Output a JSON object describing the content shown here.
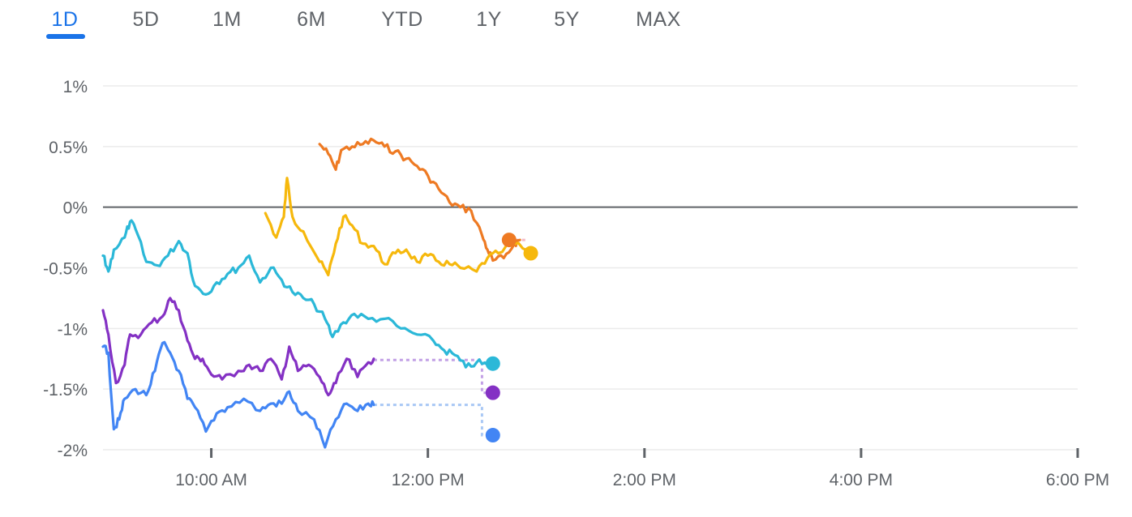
{
  "tabs": [
    {
      "label": "1D",
      "active": true
    },
    {
      "label": "5D",
      "active": false
    },
    {
      "label": "1M",
      "active": false
    },
    {
      "label": "6M",
      "active": false
    },
    {
      "label": "YTD",
      "active": false
    },
    {
      "label": "1Y",
      "active": false
    },
    {
      "label": "5Y",
      "active": false
    },
    {
      "label": "MAX",
      "active": false
    }
  ],
  "chart_data": {
    "type": "line",
    "ylim": [
      -2,
      1
    ],
    "yticks": [
      1,
      0.5,
      0,
      -0.5,
      -1,
      -1.5,
      -2
    ],
    "ytick_labels": [
      "1%",
      "0.5%",
      "0%",
      "-0.5%",
      "-1%",
      "-1.5%",
      "-2%"
    ],
    "xlim": [
      9.0,
      18.0
    ],
    "xticks": [
      10,
      12,
      14,
      16,
      18
    ],
    "xtick_labels": [
      "10:00 AM",
      "12:00 PM",
      "2:00 PM",
      "4:00 PM",
      "6:00 PM"
    ],
    "baseline": 0,
    "grid": true,
    "series": [
      {
        "color": "#ee7a23",
        "end_marker": {
          "x": 12.75,
          "y": -0.27
        },
        "points": [
          [
            11.0,
            0.52
          ],
          [
            11.08,
            0.44
          ],
          [
            11.15,
            0.31
          ],
          [
            11.2,
            0.47
          ],
          [
            11.3,
            0.5
          ],
          [
            11.4,
            0.52
          ],
          [
            11.5,
            0.55
          ],
          [
            11.6,
            0.5
          ],
          [
            11.7,
            0.46
          ],
          [
            11.8,
            0.4
          ],
          [
            11.9,
            0.34
          ],
          [
            12.0,
            0.26
          ],
          [
            12.1,
            0.15
          ],
          [
            12.2,
            0.04
          ],
          [
            12.3,
            0.0
          ],
          [
            12.4,
            -0.03
          ],
          [
            12.5,
            -0.23
          ],
          [
            12.55,
            -0.35
          ],
          [
            12.6,
            -0.44
          ],
          [
            12.7,
            -0.42
          ],
          [
            12.8,
            -0.3
          ],
          [
            12.85,
            -0.27
          ]
        ]
      },
      {
        "color": "#f6b80c",
        "end_marker": {
          "x": 12.95,
          "y": -0.38
        },
        "points": [
          [
            10.5,
            -0.05
          ],
          [
            10.6,
            -0.25
          ],
          [
            10.67,
            -0.08
          ],
          [
            10.7,
            0.24
          ],
          [
            10.75,
            -0.08
          ],
          [
            10.85,
            -0.2
          ],
          [
            11.0,
            -0.45
          ],
          [
            11.08,
            -0.56
          ],
          [
            11.15,
            -0.3
          ],
          [
            11.22,
            -0.08
          ],
          [
            11.3,
            -0.15
          ],
          [
            11.4,
            -0.3
          ],
          [
            11.5,
            -0.32
          ],
          [
            11.6,
            -0.47
          ],
          [
            11.7,
            -0.38
          ],
          [
            11.8,
            -0.35
          ],
          [
            11.9,
            -0.45
          ],
          [
            12.0,
            -0.4
          ],
          [
            12.1,
            -0.45
          ],
          [
            12.2,
            -0.47
          ],
          [
            12.3,
            -0.5
          ],
          [
            12.45,
            -0.53
          ],
          [
            12.55,
            -0.42
          ],
          [
            12.65,
            -0.38
          ],
          [
            12.8,
            -0.3
          ],
          [
            12.95,
            -0.38
          ]
        ]
      },
      {
        "color": "#2bb8d8",
        "end_marker": {
          "x": 12.6,
          "y": -1.29
        },
        "points": [
          [
            9.0,
            -0.4
          ],
          [
            9.05,
            -0.53
          ],
          [
            9.1,
            -0.35
          ],
          [
            9.2,
            -0.25
          ],
          [
            9.25,
            -0.12
          ],
          [
            9.3,
            -0.18
          ],
          [
            9.4,
            -0.45
          ],
          [
            9.5,
            -0.48
          ],
          [
            9.6,
            -0.4
          ],
          [
            9.7,
            -0.28
          ],
          [
            9.78,
            -0.38
          ],
          [
            9.85,
            -0.65
          ],
          [
            9.95,
            -0.72
          ],
          [
            10.05,
            -0.62
          ],
          [
            10.15,
            -0.55
          ],
          [
            10.25,
            -0.5
          ],
          [
            10.35,
            -0.4
          ],
          [
            10.45,
            -0.62
          ],
          [
            10.55,
            -0.5
          ],
          [
            10.65,
            -0.6
          ],
          [
            10.75,
            -0.7
          ],
          [
            10.85,
            -0.75
          ],
          [
            10.95,
            -0.8
          ],
          [
            11.05,
            -0.92
          ],
          [
            11.12,
            -1.07
          ],
          [
            11.22,
            -0.95
          ],
          [
            11.32,
            -0.88
          ],
          [
            11.45,
            -0.92
          ],
          [
            11.6,
            -0.92
          ],
          [
            11.75,
            -1.0
          ],
          [
            11.9,
            -1.05
          ],
          [
            12.05,
            -1.1
          ],
          [
            12.15,
            -1.18
          ],
          [
            12.25,
            -1.22
          ],
          [
            12.35,
            -1.32
          ],
          [
            12.45,
            -1.28
          ],
          [
            12.55,
            -1.3
          ],
          [
            12.6,
            -1.29
          ]
        ]
      },
      {
        "color": "#8431c4",
        "end_marker": {
          "x": 12.6,
          "y": -1.53
        },
        "points": [
          [
            9.0,
            -0.85
          ],
          [
            9.05,
            -1.05
          ],
          [
            9.12,
            -1.45
          ],
          [
            9.2,
            -1.3
          ],
          [
            9.25,
            -1.05
          ],
          [
            9.35,
            -1.05
          ],
          [
            9.45,
            -0.95
          ],
          [
            9.55,
            -0.9
          ],
          [
            9.62,
            -0.75
          ],
          [
            9.7,
            -0.85
          ],
          [
            9.78,
            -1.1
          ],
          [
            9.85,
            -1.25
          ],
          [
            9.92,
            -1.25
          ],
          [
            10.0,
            -1.38
          ],
          [
            10.1,
            -1.42
          ],
          [
            10.25,
            -1.35
          ],
          [
            10.35,
            -1.3
          ],
          [
            10.45,
            -1.35
          ],
          [
            10.55,
            -1.25
          ],
          [
            10.65,
            -1.42
          ],
          [
            10.72,
            -1.15
          ],
          [
            10.8,
            -1.35
          ],
          [
            10.9,
            -1.3
          ],
          [
            11.0,
            -1.4
          ],
          [
            11.08,
            -1.55
          ],
          [
            11.15,
            -1.45
          ],
          [
            11.25,
            -1.25
          ],
          [
            11.35,
            -1.4
          ],
          [
            11.45,
            -1.28
          ],
          [
            11.5,
            -1.25
          ]
        ]
      },
      {
        "color": "#4285f4",
        "end_marker": {
          "x": 12.6,
          "y": -1.88
        },
        "points": [
          [
            9.0,
            -1.15
          ],
          [
            9.05,
            -1.2
          ],
          [
            9.1,
            -1.83
          ],
          [
            9.15,
            -1.75
          ],
          [
            9.2,
            -1.58
          ],
          [
            9.3,
            -1.5
          ],
          [
            9.4,
            -1.55
          ],
          [
            9.48,
            -1.35
          ],
          [
            9.55,
            -1.12
          ],
          [
            9.62,
            -1.2
          ],
          [
            9.7,
            -1.35
          ],
          [
            9.78,
            -1.58
          ],
          [
            9.85,
            -1.65
          ],
          [
            9.95,
            -1.85
          ],
          [
            10.05,
            -1.7
          ],
          [
            10.15,
            -1.65
          ],
          [
            10.3,
            -1.58
          ],
          [
            10.45,
            -1.68
          ],
          [
            10.55,
            -1.62
          ],
          [
            10.65,
            -1.62
          ],
          [
            10.72,
            -1.52
          ],
          [
            10.8,
            -1.68
          ],
          [
            10.95,
            -1.75
          ],
          [
            11.05,
            -1.98
          ],
          [
            11.15,
            -1.75
          ],
          [
            11.25,
            -1.62
          ],
          [
            11.35,
            -1.68
          ],
          [
            11.45,
            -1.62
          ],
          [
            11.5,
            -1.63
          ]
        ]
      }
    ],
    "connectors": [
      {
        "color": "#f3b8c4",
        "points": [
          [
            12.75,
            -0.27
          ],
          [
            12.9,
            -0.27
          ]
        ]
      },
      {
        "color": "#c2a0e6",
        "points": [
          [
            11.5,
            -1.26
          ],
          [
            12.5,
            -1.26
          ],
          [
            12.5,
            -1.53
          ],
          [
            12.6,
            -1.53
          ]
        ]
      },
      {
        "color": "#a9c8f5",
        "points": [
          [
            11.5,
            -1.63
          ],
          [
            12.5,
            -1.63
          ],
          [
            12.5,
            -1.88
          ],
          [
            12.6,
            -1.88
          ]
        ]
      },
      {
        "color": "#a8e0ec",
        "points": [
          [
            12.5,
            -1.29
          ],
          [
            12.6,
            -1.29
          ]
        ]
      }
    ]
  }
}
